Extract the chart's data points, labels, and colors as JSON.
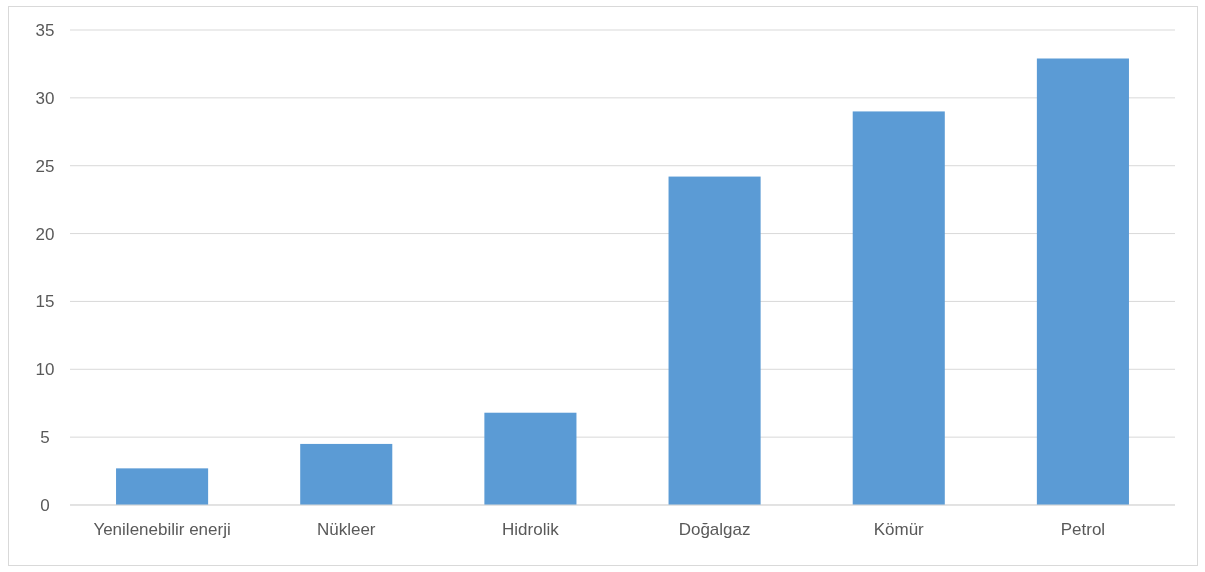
{
  "chart_data": {
    "type": "bar",
    "categories": [
      "Yenilenebilir enerji",
      "Nükleer",
      "Hidrolik",
      "Doğalgaz",
      "Kömür",
      "Petrol"
    ],
    "values": [
      2.7,
      4.5,
      6.8,
      24.2,
      29.0,
      32.9
    ],
    "color": "#5b9bd5",
    "ylim": [
      0,
      35
    ],
    "yticks": [
      0,
      5,
      10,
      15,
      20,
      25,
      30,
      35
    ],
    "grid": "y"
  }
}
